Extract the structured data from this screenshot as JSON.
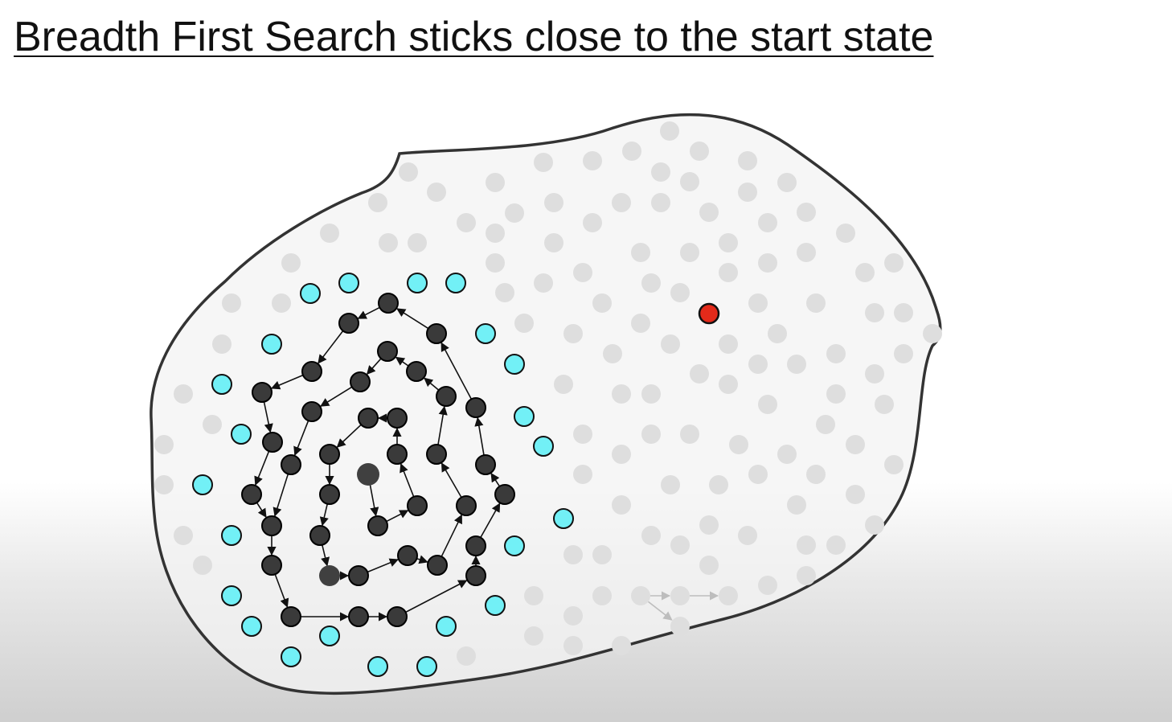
{
  "title": "Breadth First Search sticks close to the start state",
  "colors": {
    "explored": "#3a3a3a",
    "frontier": "#72f0f6",
    "unexplored": "#dedede",
    "goal": "#e32a1a",
    "region_outline": "#333333"
  },
  "legend_roles": [
    "start",
    "explored",
    "frontier",
    "unexplored",
    "goal"
  ]
}
